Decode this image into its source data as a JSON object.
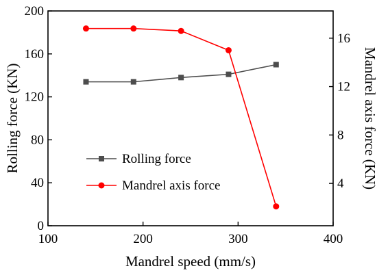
{
  "chart_data": {
    "type": "line",
    "title": "",
    "x": [
      140,
      190,
      240,
      290,
      340
    ],
    "xlabel": "Mandrel speed (mm/s)",
    "xlim": [
      100,
      400
    ],
    "xticks": [
      100,
      200,
      300,
      400
    ],
    "ylabel": "Rolling force (KN)",
    "ylim": [
      0,
      200
    ],
    "yticks": [
      0,
      40,
      80,
      120,
      160,
      200
    ],
    "y2label": "Mandrel axis force (KN)",
    "y2lim": [
      0.5,
      18.25
    ],
    "y2ticks": [
      4,
      8,
      12,
      16
    ],
    "grid": false,
    "legend_position": "bottom-left",
    "series": [
      {
        "name": "Rolling force",
        "axis": "left",
        "color": "#4d4d4d",
        "marker": "square",
        "values": [
          134,
          134,
          138,
          141,
          150
        ]
      },
      {
        "name": "Mandrel axis force",
        "axis": "right",
        "color": "#ff0000",
        "marker": "circle",
        "values": [
          16.8,
          16.8,
          16.6,
          15.0,
          2.1
        ]
      }
    ]
  }
}
